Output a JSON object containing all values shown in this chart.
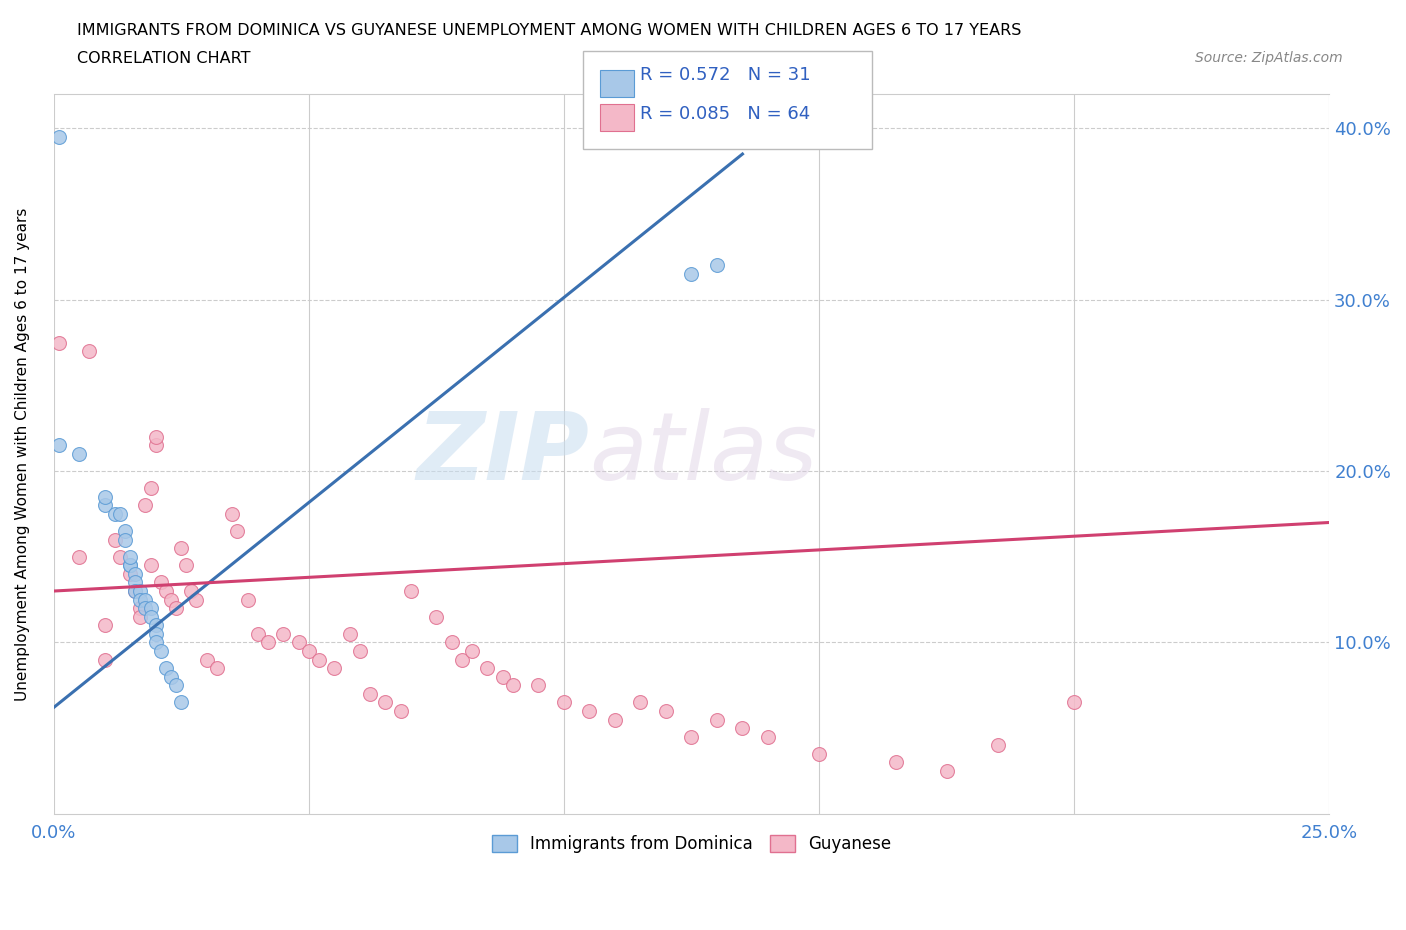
{
  "title_line1": "IMMIGRANTS FROM DOMINICA VS GUYANESE UNEMPLOYMENT AMONG WOMEN WITH CHILDREN AGES 6 TO 17 YEARS",
  "title_line2": "CORRELATION CHART",
  "source_text": "Source: ZipAtlas.com",
  "ylabel": "Unemployment Among Women with Children Ages 6 to 17 years",
  "xlim": [
    0.0,
    0.25
  ],
  "ylim": [
    0.0,
    0.42
  ],
  "x_ticks": [
    0.0,
    0.05,
    0.1,
    0.15,
    0.2,
    0.25
  ],
  "y_ticks": [
    0.0,
    0.1,
    0.2,
    0.3,
    0.4
  ],
  "watermark_zip": "ZIP",
  "watermark_atlas": "atlas",
  "blue_color": "#a8c8e8",
  "blue_edge_color": "#5b9bd5",
  "pink_color": "#f4b8c8",
  "pink_edge_color": "#e07090",
  "blue_line_color": "#3a70b0",
  "pink_line_color": "#d04070",
  "legend_text_color": "#3060c0",
  "axis_label_color": "#4080d0",
  "R_blue": "0.572",
  "N_blue": "31",
  "R_pink": "0.085",
  "N_pink": "64",
  "blue_scatter_x": [
    0.001,
    0.001,
    0.005,
    0.01,
    0.01,
    0.012,
    0.013,
    0.014,
    0.014,
    0.015,
    0.015,
    0.015,
    0.016,
    0.016,
    0.016,
    0.017,
    0.017,
    0.018,
    0.018,
    0.019,
    0.019,
    0.02,
    0.02,
    0.02,
    0.021,
    0.022,
    0.023,
    0.024,
    0.025,
    0.125,
    0.13
  ],
  "blue_scatter_y": [
    0.395,
    0.215,
    0.21,
    0.18,
    0.185,
    0.175,
    0.175,
    0.165,
    0.16,
    0.145,
    0.145,
    0.15,
    0.14,
    0.135,
    0.13,
    0.13,
    0.125,
    0.125,
    0.12,
    0.12,
    0.115,
    0.11,
    0.105,
    0.1,
    0.095,
    0.085,
    0.08,
    0.075,
    0.065,
    0.315,
    0.32
  ],
  "pink_scatter_x": [
    0.001,
    0.005,
    0.007,
    0.01,
    0.01,
    0.012,
    0.013,
    0.015,
    0.016,
    0.017,
    0.017,
    0.018,
    0.019,
    0.019,
    0.02,
    0.02,
    0.021,
    0.022,
    0.023,
    0.024,
    0.025,
    0.026,
    0.027,
    0.028,
    0.03,
    0.032,
    0.035,
    0.036,
    0.038,
    0.04,
    0.042,
    0.045,
    0.048,
    0.05,
    0.052,
    0.055,
    0.058,
    0.06,
    0.062,
    0.065,
    0.068,
    0.07,
    0.075,
    0.078,
    0.08,
    0.082,
    0.085,
    0.088,
    0.09,
    0.095,
    0.1,
    0.105,
    0.11,
    0.115,
    0.12,
    0.125,
    0.13,
    0.135,
    0.14,
    0.15,
    0.165,
    0.175,
    0.185,
    0.2
  ],
  "pink_scatter_y": [
    0.275,
    0.15,
    0.27,
    0.11,
    0.09,
    0.16,
    0.15,
    0.14,
    0.13,
    0.12,
    0.115,
    0.18,
    0.19,
    0.145,
    0.215,
    0.22,
    0.135,
    0.13,
    0.125,
    0.12,
    0.155,
    0.145,
    0.13,
    0.125,
    0.09,
    0.085,
    0.175,
    0.165,
    0.125,
    0.105,
    0.1,
    0.105,
    0.1,
    0.095,
    0.09,
    0.085,
    0.105,
    0.095,
    0.07,
    0.065,
    0.06,
    0.13,
    0.115,
    0.1,
    0.09,
    0.095,
    0.085,
    0.08,
    0.075,
    0.075,
    0.065,
    0.06,
    0.055,
    0.065,
    0.06,
    0.045,
    0.055,
    0.05,
    0.045,
    0.035,
    0.03,
    0.025,
    0.04,
    0.065
  ],
  "blue_line_x0": 0.0,
  "blue_line_y0": 0.062,
  "blue_line_x1": 0.135,
  "blue_line_y1": 0.385,
  "pink_line_x0": 0.0,
  "pink_line_y0": 0.13,
  "pink_line_x1": 0.25,
  "pink_line_y1": 0.17
}
